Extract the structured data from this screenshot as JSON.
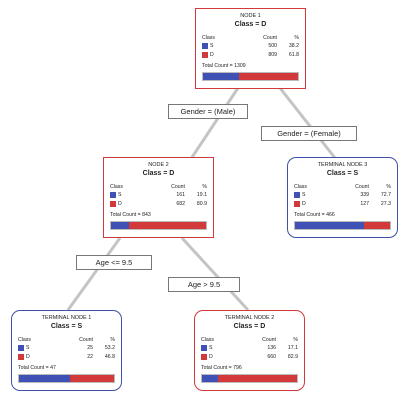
{
  "nodes": {
    "n1": {
      "title": "NODE 1",
      "class_label": "Class = D",
      "col_class": "Class",
      "col_count": "Count",
      "col_pct": "%",
      "rows": [
        {
          "label": "S",
          "count": "500",
          "pct": "38.2"
        },
        {
          "label": "D",
          "count": "809",
          "pct": "61.8"
        }
      ],
      "total": "Total Count = 1309",
      "fraction_s": 0.382,
      "color": "#d2393b"
    },
    "n2": {
      "title": "NODE 2",
      "class_label": "Class = D",
      "col_class": "Class",
      "col_count": "Count",
      "col_pct": "%",
      "rows": [
        {
          "label": "S",
          "count": "161",
          "pct": "19.1"
        },
        {
          "label": "D",
          "count": "682",
          "pct": "80.9"
        }
      ],
      "total": "Total Count = 843",
      "fraction_s": 0.191,
      "color": "#d2393b"
    },
    "t3": {
      "title": "TERMINAL NODE 3",
      "class_label": "Class = S",
      "col_class": "Class",
      "col_count": "Count",
      "col_pct": "%",
      "rows": [
        {
          "label": "S",
          "count": "339",
          "pct": "72.7"
        },
        {
          "label": "D",
          "count": "127",
          "pct": "27.3"
        }
      ],
      "total": "Total Count = 466",
      "fraction_s": 0.727,
      "color": "#3f51a8"
    },
    "t1": {
      "title": "TERMINAL NODE 1",
      "class_label": "Class = S",
      "col_class": "Class",
      "col_count": "Count",
      "col_pct": "%",
      "rows": [
        {
          "label": "S",
          "count": "25",
          "pct": "53.2"
        },
        {
          "label": "D",
          "count": "22",
          "pct": "46.8"
        }
      ],
      "total": "Total Count = 47",
      "fraction_s": 0.532,
      "color": "#3f51a8"
    },
    "t2": {
      "title": "TERMINAL NODE 2",
      "class_label": "Class = D",
      "col_class": "Class",
      "col_count": "Count",
      "col_pct": "%",
      "rows": [
        {
          "label": "S",
          "count": "136",
          "pct": "17.1"
        },
        {
          "label": "D",
          "count": "660",
          "pct": "82.9"
        }
      ],
      "total": "Total Count = 796",
      "fraction_s": 0.171,
      "color": "#d2393b"
    }
  },
  "splits": {
    "male": "Gender = (Male)",
    "female": "Gender = (Female)",
    "age_le": "Age <= 9.5",
    "age_gt": "Age > 9.5"
  },
  "colors": {
    "class_s": "#3f51b5",
    "class_d": "#d2393b",
    "edge": "#c4c4c4"
  }
}
